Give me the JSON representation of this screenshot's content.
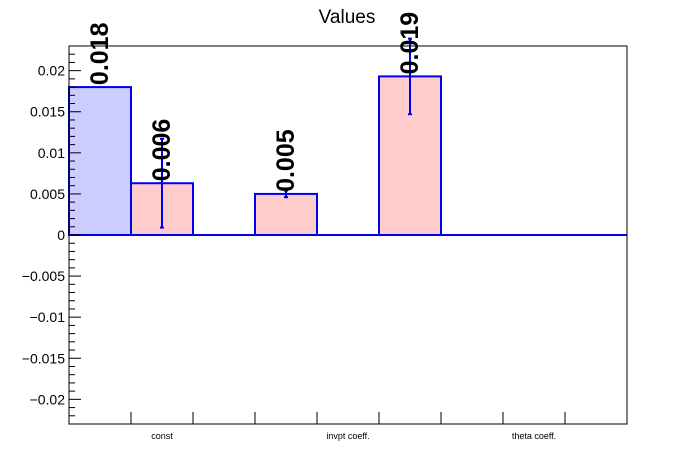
{
  "chart_data": {
    "type": "bar",
    "title": "Values",
    "xlabel": "",
    "ylabel": "",
    "ylim": [
      -0.023,
      0.023
    ],
    "y_ticks": [
      0.02,
      0.015,
      0.01,
      0.005,
      0,
      -0.005,
      -0.01,
      -0.015,
      -0.02
    ],
    "y_tick_labels": [
      "0.02",
      "0.015",
      "0.01",
      "0.005",
      "0",
      "−0.005",
      "−0.01",
      "−0.015",
      "−0.02"
    ],
    "categories": [
      "const",
      "invpt coeff.",
      "theta coeff."
    ],
    "bars": [
      {
        "slot": 0,
        "value": 0.018,
        "label": "0.018",
        "color": "#ccccff",
        "error": null
      },
      {
        "slot": 1,
        "value": 0.0063,
        "label": "0.006",
        "color": "#ffcccc",
        "error": 0.0054
      },
      {
        "slot": 3,
        "value": 0.005,
        "label": "0.005",
        "color": "#ffcccc",
        "error": 0.0004
      },
      {
        "slot": 5,
        "value": 0.0193,
        "label": "0.019",
        "color": "#ffcccc",
        "error": 0.0046
      }
    ],
    "slots": 9,
    "bar_edge_color": "#0000ee",
    "grid": false,
    "legend": "none"
  }
}
